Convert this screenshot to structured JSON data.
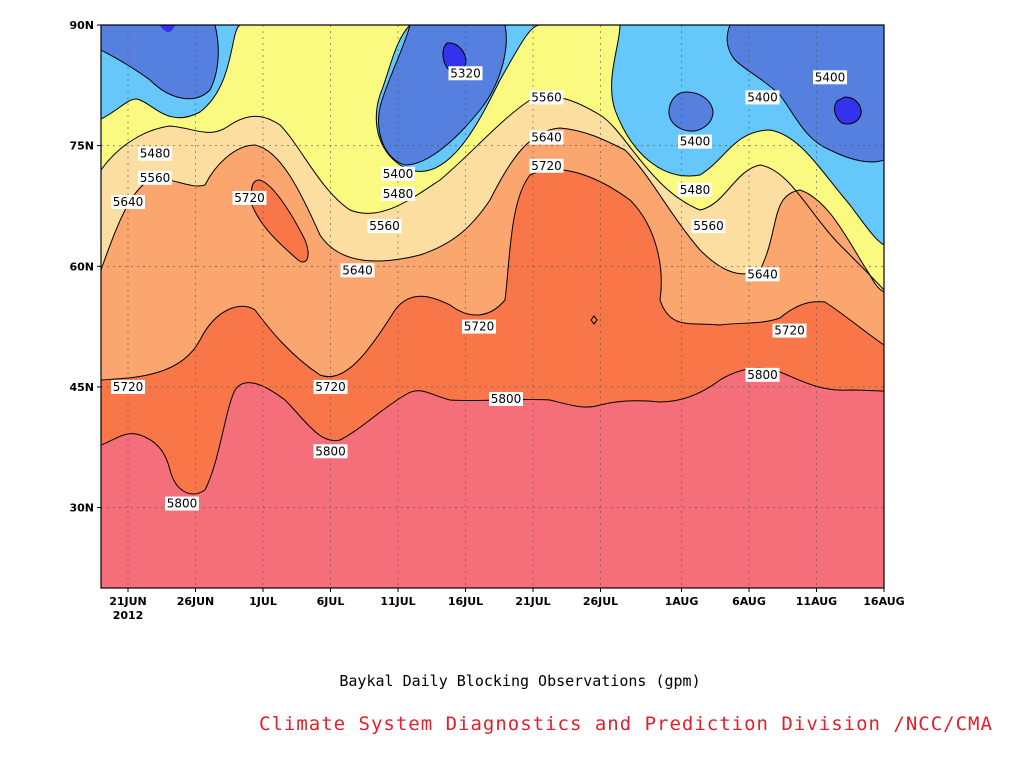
{
  "chart_data": {
    "type": "contour",
    "caption": "Baykal Daily Blocking Observations (gpm)",
    "x_ticks": [
      "21JUN",
      "26JUN",
      "1JUL",
      "6JUL",
      "11JUL",
      "16JUL",
      "21JUL",
      "26JUL",
      "1AUG",
      "6AUG",
      "11AUG",
      "16AUG"
    ],
    "x_year_label": "2012",
    "x_range": [
      "2012-06-19",
      "2012-08-16"
    ],
    "y_ticks": [
      "30N",
      "45N",
      "60N",
      "75N",
      "90N"
    ],
    "y_range": [
      20,
      90
    ],
    "grid": true,
    "contour_levels": [
      5320,
      5400,
      5480,
      5560,
      5640,
      5720,
      5800
    ],
    "contour_colors": [
      "#3333ee",
      "#5580e0",
      "#66c8fa",
      "#fbfa80",
      "#fcdfa0",
      "#fba56f",
      "#f97648",
      "#f46f7a"
    ],
    "contour_labels": [
      {
        "text": "5480",
        "date": "2012-06-23",
        "lat": 74
      },
      {
        "text": "5560",
        "date": "2012-06-23",
        "lat": 71
      },
      {
        "text": "5640",
        "date": "2012-06-21",
        "lat": 68
      },
      {
        "text": "5720",
        "date": "2012-06-21",
        "lat": 45
      },
      {
        "text": "5800",
        "date": "2012-06-25",
        "lat": 30.5
      },
      {
        "text": "5720",
        "date": "2012-06-30",
        "lat": 68.5
      },
      {
        "text": "5640",
        "date": "2012-07-08",
        "lat": 59.5
      },
      {
        "text": "5720",
        "date": "2012-07-06",
        "lat": 45
      },
      {
        "text": "5800",
        "date": "2012-07-06",
        "lat": 37
      },
      {
        "text": "5560",
        "date": "2012-07-10",
        "lat": 65
      },
      {
        "text": "5400",
        "date": "2012-07-11",
        "lat": 71.5
      },
      {
        "text": "5480",
        "date": "2012-07-11",
        "lat": 69
      },
      {
        "text": "5320",
        "date": "2012-07-16",
        "lat": 84
      },
      {
        "text": "5720",
        "date": "2012-07-17",
        "lat": 52.5
      },
      {
        "text": "5800",
        "date": "2012-07-19",
        "lat": 43.5
      },
      {
        "text": "5560",
        "date": "2012-07-22",
        "lat": 81
      },
      {
        "text": "5640",
        "date": "2012-07-22",
        "lat": 76
      },
      {
        "text": "5720",
        "date": "2012-07-22",
        "lat": 72.5
      },
      {
        "text": "5400",
        "date": "2012-08-02",
        "lat": 75.5
      },
      {
        "text": "5480",
        "date": "2012-08-02",
        "lat": 69.5
      },
      {
        "text": "5560",
        "date": "2012-08-03",
        "lat": 65
      },
      {
        "text": "5400",
        "date": "2012-08-07",
        "lat": 81
      },
      {
        "text": "5640",
        "date": "2012-08-07",
        "lat": 59
      },
      {
        "text": "5720",
        "date": "2012-08-09",
        "lat": 52
      },
      {
        "text": "5800",
        "date": "2012-08-07",
        "lat": 46.5
      },
      {
        "text": "5400",
        "date": "2012-08-12",
        "lat": 83.5
      }
    ]
  },
  "credit": "Climate System Diagnostics and Prediction Division /NCC/CMA"
}
